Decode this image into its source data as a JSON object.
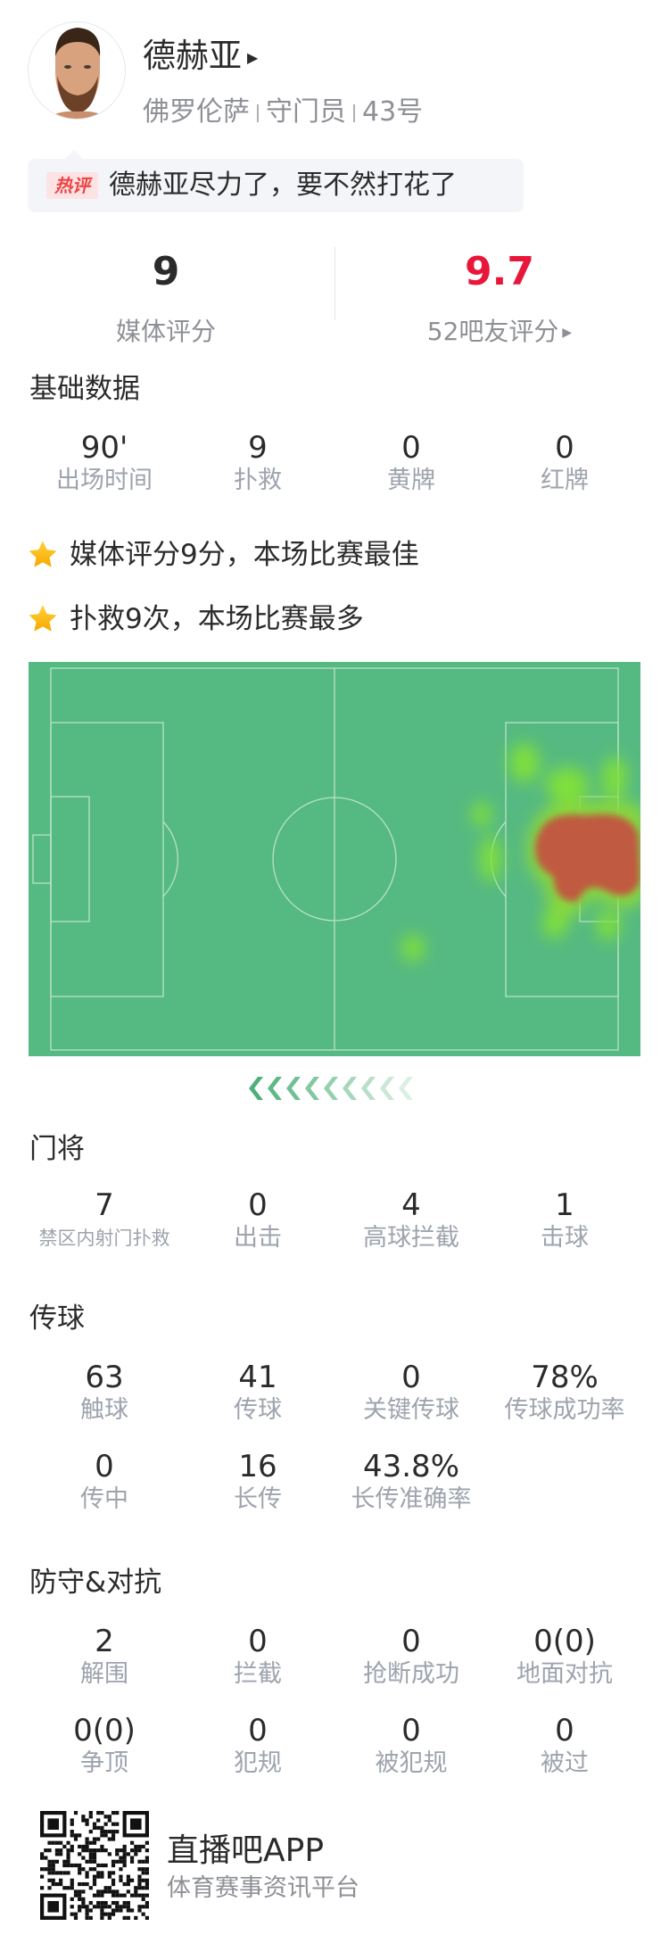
{
  "player": {
    "name": "德赫亚",
    "team": "佛罗伦萨",
    "position": "守门员",
    "number": "43号"
  },
  "hot_comment": {
    "badge": "热评",
    "text": "德赫亚尽力了，要不然打花了"
  },
  "ratings": {
    "media": {
      "value": "9",
      "label": "媒体评分"
    },
    "fans": {
      "value": "9.7",
      "label": "52吧友评分",
      "color": "#e8173a"
    }
  },
  "basic": {
    "title": "基础数据",
    "items": [
      {
        "value": "90'",
        "label": "出场时间"
      },
      {
        "value": "9",
        "label": "扑救"
      },
      {
        "value": "0",
        "label": "黄牌"
      },
      {
        "value": "0",
        "label": "红牌"
      }
    ]
  },
  "highlights": [
    {
      "icon": "star-icon",
      "text": "媒体评分9分，本场比赛最佳"
    },
    {
      "icon": "star-icon",
      "text": "扑救9次，本场比赛最多"
    }
  ],
  "goalkeeping": {
    "title": "门将",
    "rows": [
      [
        {
          "value": "7",
          "label": "禁区内射门扑救"
        },
        {
          "value": "0",
          "label": "出击"
        },
        {
          "value": "4",
          "label": "高球拦截"
        },
        {
          "value": "1",
          "label": "击球"
        }
      ]
    ]
  },
  "passing": {
    "title": "传球",
    "rows": [
      [
        {
          "value": "63",
          "label": "触球"
        },
        {
          "value": "41",
          "label": "传球"
        },
        {
          "value": "0",
          "label": "关键传球"
        },
        {
          "value": "78%",
          "label": "传球成功率"
        }
      ],
      [
        {
          "value": "0",
          "label": "传中"
        },
        {
          "value": "16",
          "label": "长传"
        },
        {
          "value": "43.8%",
          "label": "长传准确率"
        }
      ]
    ]
  },
  "defense": {
    "title": "防守&对抗",
    "rows": [
      [
        {
          "value": "2",
          "label": "解围"
        },
        {
          "value": "0",
          "label": "拦截"
        },
        {
          "value": "0",
          "label": "抢断成功"
        },
        {
          "value": "0(0)",
          "label": "地面对抗"
        }
      ],
      [
        {
          "value": "0(0)",
          "label": "争顶"
        },
        {
          "value": "0",
          "label": "犯规"
        },
        {
          "value": "0",
          "label": "被犯规"
        },
        {
          "value": "0",
          "label": "被过"
        }
      ]
    ]
  },
  "footer": {
    "app_name": "直播吧APP",
    "tagline": "体育赛事资讯平台"
  },
  "colors": {
    "pitch": "#55b982",
    "accent_red": "#e8173a",
    "star": "#f7b500"
  }
}
